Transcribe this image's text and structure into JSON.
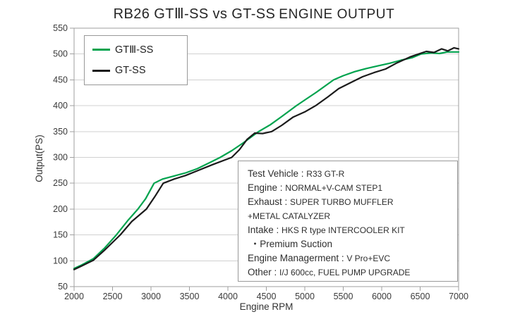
{
  "title": {
    "part1": "RB26 GTⅢ-SS vs GT-SS",
    "part2": "ENGINE OUTPUT"
  },
  "chart_data": {
    "type": "line",
    "title": "RB26 GTⅢ-SS vs GT-SS ENGINE OUTPUT",
    "xlabel": "Engine RPM",
    "ylabel": "Output(PS)",
    "xlim": [
      2000,
      7000
    ],
    "ylim": [
      50,
      550
    ],
    "xticks": [
      2000,
      2500,
      3000,
      3500,
      4000,
      4500,
      5000,
      5500,
      6000,
      6500,
      7000
    ],
    "yticks": [
      50,
      100,
      150,
      200,
      250,
      300,
      350,
      400,
      450,
      500,
      550
    ],
    "grid": "horizontal",
    "legend_position": "top-left",
    "colors": {
      "grid": "#d0d0d0",
      "border": "#9f9f9f",
      "tick_text": "#3a3a3a"
    },
    "series": [
      {
        "name": "GTⅢ-SS",
        "color": "#00a34e",
        "points": [
          [
            2000,
            85
          ],
          [
            2100,
            92
          ],
          [
            2250,
            104
          ],
          [
            2400,
            125
          ],
          [
            2550,
            150
          ],
          [
            2700,
            178
          ],
          [
            2830,
            200
          ],
          [
            2930,
            220
          ],
          [
            3040,
            250
          ],
          [
            3150,
            258
          ],
          [
            3300,
            264
          ],
          [
            3450,
            270
          ],
          [
            3600,
            278
          ],
          [
            3750,
            289
          ],
          [
            3900,
            300
          ],
          [
            4050,
            313
          ],
          [
            4200,
            328
          ],
          [
            4400,
            350
          ],
          [
            4550,
            363
          ],
          [
            4700,
            379
          ],
          [
            4890,
            400
          ],
          [
            5000,
            411
          ],
          [
            5150,
            426
          ],
          [
            5375,
            450
          ],
          [
            5500,
            458
          ],
          [
            5650,
            466
          ],
          [
            5800,
            472
          ],
          [
            5950,
            477
          ],
          [
            6100,
            482
          ],
          [
            6250,
            488
          ],
          [
            6400,
            493
          ],
          [
            6510,
            500
          ],
          [
            6650,
            502
          ],
          [
            6750,
            501
          ],
          [
            6850,
            504
          ],
          [
            7000,
            504
          ]
        ]
      },
      {
        "name": "GT-SS",
        "color": "#1b1b1b",
        "points": [
          [
            2000,
            83
          ],
          [
            2100,
            90
          ],
          [
            2250,
            101
          ],
          [
            2400,
            121
          ],
          [
            2600,
            150
          ],
          [
            2750,
            176
          ],
          [
            2940,
            200
          ],
          [
            3050,
            224
          ],
          [
            3160,
            250
          ],
          [
            3300,
            258
          ],
          [
            3450,
            265
          ],
          [
            3600,
            274
          ],
          [
            3800,
            286
          ],
          [
            4050,
            300
          ],
          [
            4150,
            315
          ],
          [
            4250,
            335
          ],
          [
            4350,
            347
          ],
          [
            4450,
            346
          ],
          [
            4570,
            350
          ],
          [
            4700,
            362
          ],
          [
            4850,
            378
          ],
          [
            5000,
            388
          ],
          [
            5140,
            400
          ],
          [
            5300,
            417
          ],
          [
            5440,
            433
          ],
          [
            5600,
            445
          ],
          [
            5750,
            456
          ],
          [
            5900,
            464
          ],
          [
            6050,
            471
          ],
          [
            6200,
            483
          ],
          [
            6380,
            495
          ],
          [
            6480,
            500
          ],
          [
            6580,
            505
          ],
          [
            6680,
            503
          ],
          [
            6780,
            510
          ],
          [
            6860,
            506
          ],
          [
            6940,
            512
          ],
          [
            7000,
            510
          ]
        ]
      }
    ]
  },
  "info_box": {
    "lines": [
      {
        "label": "Test Vehicle : ",
        "value": "R33 GT-R"
      },
      {
        "label": "Engine : ",
        "value": "NORMAL+V-CAM STEP1"
      },
      {
        "label": "Exhaust : ",
        "value": "SUPER TURBO MUFFLER"
      },
      {
        "label": "",
        "value": "+METAL CATALYZER"
      },
      {
        "label": "Intake : ",
        "value": "HKS R type INTERCOOLER KIT"
      },
      {
        "label": " ・Premium Suction",
        "value": ""
      },
      {
        "label": "Engine Managerment : ",
        "value": "V Pro+EVC"
      },
      {
        "label": "Other : ",
        "value": "I/J 600cc, FUEL PUMP UPGRADE"
      }
    ]
  }
}
